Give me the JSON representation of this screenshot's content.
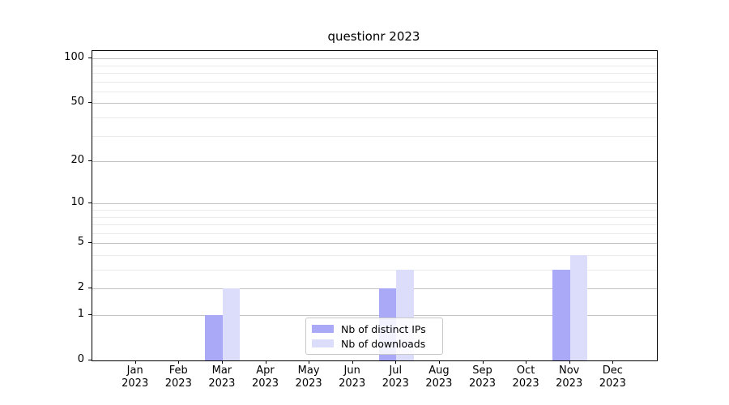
{
  "chart_data": {
    "type": "bar",
    "title": "questionr 2023",
    "x": {
      "months": [
        "Jan",
        "Feb",
        "Mar",
        "Apr",
        "May",
        "Jun",
        "Jul",
        "Aug",
        "Sep",
        "Oct",
        "Nov",
        "Dec"
      ],
      "year": "2023"
    },
    "series": [
      {
        "name": "Nb of distinct IPs",
        "color": "#a9a9f8",
        "values": [
          0,
          0,
          1,
          0,
          0,
          0,
          2,
          0,
          0,
          0,
          3,
          0
        ]
      },
      {
        "name": "Nb of downloads",
        "color": "#dcdcfb",
        "values": [
          0,
          0,
          2,
          0,
          0,
          0,
          3,
          0,
          0,
          0,
          4,
          0
        ]
      }
    ],
    "y_axis": {
      "scale": "log1p",
      "major_ticks": [
        0,
        1,
        2,
        5,
        10,
        20,
        50,
        100
      ],
      "minor_ticks": [
        3,
        4,
        6,
        7,
        8,
        9,
        30,
        40,
        60,
        70,
        80,
        90
      ],
      "max": 112
    },
    "legend": {
      "position": "bottom-center"
    }
  }
}
